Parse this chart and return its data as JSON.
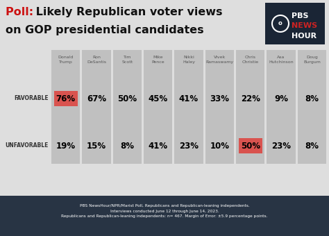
{
  "title_poll": "Poll: ",
  "title_main_line1": " Likely Republican voter views",
  "title_main_line2": "on GOP presidential candidates",
  "candidates": [
    "Donald\nTrump",
    "Ron\nDeSantis",
    "Tim\nScott",
    "Mike\nPence",
    "Nikki\nHaley",
    "Vivek\nRamaswamy",
    "Chris\nChristie",
    "Asa\nHutchinson",
    "Doug\nBurgum"
  ],
  "favorable": [
    76,
    67,
    50,
    45,
    41,
    33,
    22,
    9,
    8
  ],
  "unfavorable": [
    19,
    15,
    8,
    41,
    23,
    10,
    50,
    23,
    8
  ],
  "favorable_highlight": [
    0
  ],
  "unfavorable_highlight": [
    6
  ],
  "highlight_color": "#d9534f",
  "col_color": "#c0c0c0",
  "bg_color": "#dedede",
  "footer_bg": "#283444",
  "footer_text": "PBS NewsHour/NPR/Marist Poll, Republicans and Republican-leaning independents.\nInterviews conducted June 12 through June 14, 2023.\nRepublicans and Republican-leaning independents: n= 467. Margin of Error: ±5.9 percentage points.",
  "footer_color": "#ffffff",
  "label_favorable": "FAVORABLE",
  "label_unfavorable": "UNFAVORABLE",
  "pbs_bg": "#1a2535",
  "pbs_text_color": "#ffffff",
  "pbs_news_color": "#cc2222",
  "title_red": "#cc1111",
  "title_black": "#111111",
  "label_color": "#333333"
}
